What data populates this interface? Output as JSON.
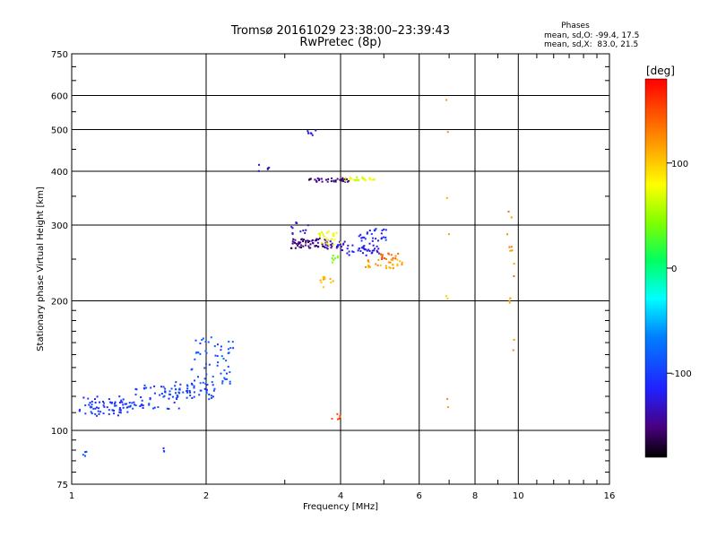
{
  "chart_data": {
    "type": "scatter",
    "title": "Tromsø 20161029 23:38:00–23:39:43",
    "subtitle": "RwPretec (8p)",
    "xlabel": "Frequency [MHz]",
    "ylabel": "Stationary phase Virtual Height [km]",
    "x_scale": "log",
    "y_scale": "log",
    "xlim": [
      1,
      16
    ],
    "ylim": [
      75,
      750
    ],
    "x_ticks": [
      1,
      2,
      4,
      6,
      8,
      10,
      16
    ],
    "y_ticks": [
      75,
      100,
      200,
      300,
      400,
      500,
      600,
      750
    ],
    "grid": true,
    "stats": {
      "heading": "Phases",
      "line_o": "mean, sd,O: -99.4, 17.5",
      "line_x": "mean, sd,X:  83.0, 21.5"
    },
    "colorbar": {
      "label": "[deg]",
      "range": [
        -180,
        180
      ],
      "ticks": [
        100,
        0,
        -100
      ],
      "colormap": "rainbow"
    },
    "series": [
      {
        "name": "O",
        "mean_phase": -99.4,
        "sd_phase": 17.5,
        "clusters": [
          {
            "x": [
              1.04,
              1.35
            ],
            "y": [
              108,
              120
            ],
            "phase": -105,
            "n": 70
          },
          {
            "x": [
              1.35,
              1.75
            ],
            "y": [
              112,
              128
            ],
            "phase": -100,
            "n": 60
          },
          {
            "x": [
              1.7,
              2.1
            ],
            "y": [
              118,
              130
            ],
            "phase": -95,
            "n": 45
          },
          {
            "x": [
              1.85,
              2.3
            ],
            "y": [
              128,
              165
            ],
            "phase": -90,
            "n": 55
          },
          {
            "x": [
              3.1,
              3.75
            ],
            "y": [
              265,
              280
            ],
            "phase": -150,
            "n": 55
          },
          {
            "x": [
              3.7,
              4.1
            ],
            "y": [
              262,
              275
            ],
            "phase": -130,
            "n": 25
          },
          {
            "x": [
              4.1,
              4.9
            ],
            "y": [
              255,
              270
            ],
            "phase": -120,
            "n": 35
          },
          {
            "x": [
              4.4,
              5.1
            ],
            "y": [
              270,
              295
            ],
            "phase": -110,
            "n": 30
          },
          {
            "x": [
              3.1,
              3.4
            ],
            "y": [
              285,
              305
            ],
            "phase": -125,
            "n": 12
          },
          {
            "x": [
              3.4,
              4.2
            ],
            "y": [
              378,
              386
            ],
            "phase": -150,
            "n": 35
          },
          {
            "x": [
              3.35,
              3.55
            ],
            "y": [
              485,
              498
            ],
            "phase": -115,
            "n": 7
          },
          {
            "x": [
              2.6,
              2.78
            ],
            "y": [
              400,
              415
            ],
            "phase": -140,
            "n": 5
          },
          {
            "x": [
              1.05,
              1.08
            ],
            "y": [
              87,
              90
            ],
            "phase": -100,
            "n": 4
          },
          {
            "x": [
              1.6,
              1.62
            ],
            "y": [
              89,
              91
            ],
            "phase": -100,
            "n": 3
          }
        ]
      },
      {
        "name": "X",
        "mean_phase": 83.0,
        "sd_phase": 21.5,
        "clusters": [
          {
            "x": [
              3.55,
              4.0
            ],
            "y": [
              270,
              290
            ],
            "phase": 80,
            "n": 25
          },
          {
            "x": [
              3.6,
              3.85
            ],
            "y": [
              215,
              228
            ],
            "phase": 105,
            "n": 12
          },
          {
            "x": [
              3.7,
              4.0
            ],
            "y": [
              245,
              255
            ],
            "phase": 40,
            "n": 8
          },
          {
            "x": [
              4.1,
              4.8
            ],
            "y": [
              380,
              388
            ],
            "phase": 70,
            "n": 25
          },
          {
            "x": [
              4.5,
              5.5
            ],
            "y": [
              238,
              250
            ],
            "phase": 115,
            "n": 30
          },
          {
            "x": [
              4.9,
              5.4
            ],
            "y": [
              250,
              258
            ],
            "phase": 140,
            "n": 15
          },
          {
            "x": [
              9.4,
              9.8
            ],
            "y": [
              150,
              330
            ],
            "phase": 125,
            "n": 14
          },
          {
            "x": [
              3.8,
              4.0
            ],
            "y": [
              106,
              110
            ],
            "phase": 150,
            "n": 6
          },
          {
            "x": [
              6.9,
              7.0
            ],
            "y": [
              110,
              600
            ],
            "phase": 110,
            "n": 8
          }
        ]
      }
    ]
  }
}
